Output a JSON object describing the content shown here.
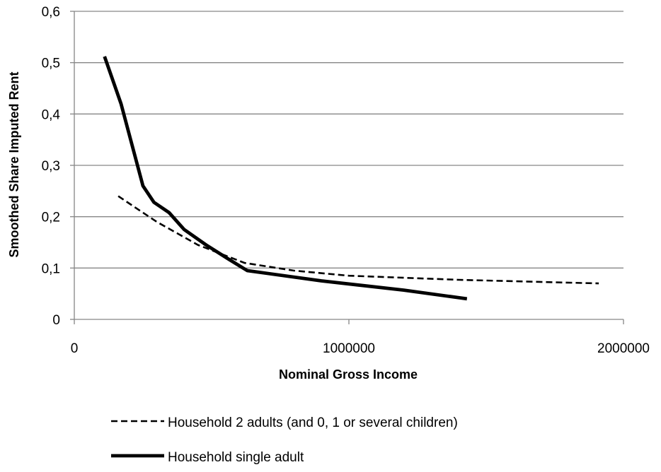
{
  "chart_data": {
    "type": "line",
    "xlabel": "Nominal Gross Income",
    "ylabel": "Smoothed Share Imputed Rent",
    "xlim": [
      0,
      2000000
    ],
    "ylim": [
      0,
      0.6
    ],
    "x_ticks": [
      0,
      1000000,
      2000000
    ],
    "x_tick_labels": [
      "0",
      "1000000",
      "2000000"
    ],
    "y_ticks": [
      0,
      0.1,
      0.2,
      0.3,
      0.4,
      0.5,
      0.6
    ],
    "y_tick_labels": [
      "0",
      "0,1",
      "0,2",
      "0,3",
      "0,4",
      "0,5",
      "0,6"
    ],
    "grid": "horizontal",
    "legend_position": "bottom",
    "series": [
      {
        "name": "Household 2 adults (and 0, 1 or several children)",
        "style": "dashed",
        "color": "#000000",
        "points": [
          [
            160000,
            0.24
          ],
          [
            300000,
            0.19
          ],
          [
            450000,
            0.145
          ],
          [
            620000,
            0.11
          ],
          [
            800000,
            0.095
          ],
          [
            1000000,
            0.085
          ],
          [
            1400000,
            0.077
          ],
          [
            1910000,
            0.07
          ]
        ]
      },
      {
        "name": "Household single adult",
        "style": "solid",
        "color": "#000000",
        "points": [
          [
            110000,
            0.512
          ],
          [
            170000,
            0.42
          ],
          [
            250000,
            0.26
          ],
          [
            290000,
            0.228
          ],
          [
            345000,
            0.208
          ],
          [
            400000,
            0.175
          ],
          [
            480000,
            0.145
          ],
          [
            560000,
            0.118
          ],
          [
            630000,
            0.095
          ],
          [
            900000,
            0.075
          ],
          [
            1200000,
            0.057
          ],
          [
            1430000,
            0.04
          ]
        ]
      }
    ]
  }
}
